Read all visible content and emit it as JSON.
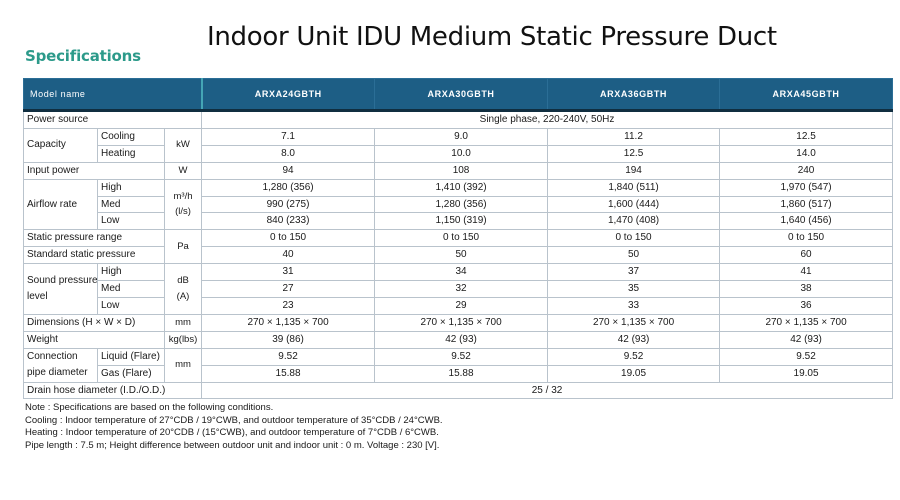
{
  "page": {
    "section_heading": "Specifications",
    "title": "Indoor Unit IDU Medium Static Pressure Duct"
  },
  "table": {
    "header_label": "Model name",
    "models": [
      "ARXA24GBTH",
      "ARXA30GBTH",
      "ARXA36GBTH",
      "ARXA45GBTH"
    ],
    "power_source": {
      "label": "Power source",
      "value": "Single phase, 220-240V, 50Hz"
    },
    "capacity": {
      "label": "Capacity",
      "unit": "kW",
      "rows": [
        {
          "sub": "Cooling",
          "values": [
            "7.1",
            "9.0",
            "11.2",
            "12.5"
          ]
        },
        {
          "sub": "Heating",
          "values": [
            "8.0",
            "10.0",
            "12.5",
            "14.0"
          ]
        }
      ]
    },
    "input_power": {
      "label": "Input power",
      "unit": "W",
      "values": [
        "94",
        "108",
        "194",
        "240"
      ]
    },
    "airflow": {
      "label": "Airflow rate",
      "unit_line1": "m³/h",
      "unit_line2": "(l/s)",
      "rows": [
        {
          "sub": "High",
          "values": [
            "1,280 (356)",
            "1,410 (392)",
            "1,840 (511)",
            "1,970 (547)"
          ]
        },
        {
          "sub": "Med",
          "values": [
            "990 (275)",
            "1,280 (356)",
            "1,600 (444)",
            "1,860 (517)"
          ]
        },
        {
          "sub": "Low",
          "values": [
            "840 (233)",
            "1,150 (319)",
            "1,470 (408)",
            "1,640 (456)"
          ]
        }
      ]
    },
    "static_pressure": {
      "range_label": "Static pressure range",
      "standard_label": "Standard static pressure",
      "unit": "Pa",
      "range_values": [
        "0 to 150",
        "0 to 150",
        "0 to 150",
        "0 to 150"
      ],
      "standard_values": [
        "40",
        "50",
        "50",
        "60"
      ]
    },
    "sound": {
      "label_line1": "Sound pressure",
      "label_line2": "level",
      "unit_line1": "dB",
      "unit_line2": "(A)",
      "rows": [
        {
          "sub": "High",
          "values": [
            "31",
            "34",
            "37",
            "41"
          ]
        },
        {
          "sub": "Med",
          "values": [
            "27",
            "32",
            "35",
            "38"
          ]
        },
        {
          "sub": "Low",
          "values": [
            "23",
            "29",
            "33",
            "36"
          ]
        }
      ]
    },
    "dimensions": {
      "label": "Dimensions (H × W × D)",
      "unit": "mm",
      "values": [
        "270 × 1,135 × 700",
        "270 × 1,135 × 700",
        "270 × 1,135 × 700",
        "270 × 1,135 × 700"
      ]
    },
    "weight": {
      "label": "Weight",
      "unit": "kg(lbs)",
      "values": [
        "39 (86)",
        "42 (93)",
        "42 (93)",
        "42 (93)"
      ]
    },
    "pipe": {
      "label_line1": "Connection",
      "label_line2": "pipe diameter",
      "unit": "mm",
      "rows": [
        {
          "sub": "Liquid (Flare)",
          "values": [
            "9.52",
            "9.52",
            "9.52",
            "9.52"
          ]
        },
        {
          "sub": "Gas (Flare)",
          "values": [
            "15.88",
            "15.88",
            "19.05",
            "19.05"
          ]
        }
      ]
    },
    "drain": {
      "label": "Drain hose diameter (I.D./O.D.)",
      "value": "25 / 32"
    }
  },
  "notes": [
    "Note : Specifications are based on the following conditions.",
    "Cooling : Indoor temperature of 27°CDB / 19°CWB, and outdoor temperature of 35°CDB / 24°CWB.",
    "Heating : Indoor temperature of 20°CDB / (15°CWB), and outdoor temperature of 7°CDB / 6°CWB.",
    "Pipe length : 7.5 m; Height difference between outdoor unit and indoor unit : 0 m.  Voltage : 230 [V]."
  ]
}
